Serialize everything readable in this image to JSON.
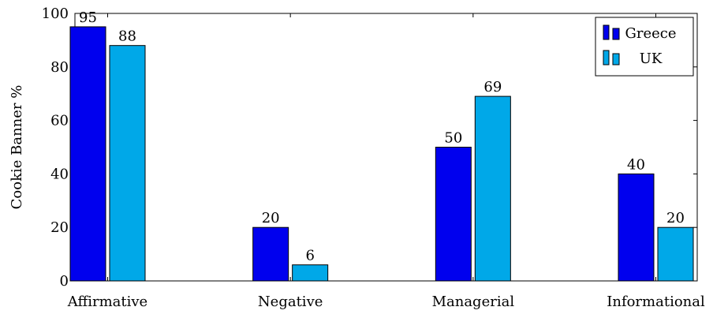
{
  "chart_data": {
    "type": "bar",
    "title": "",
    "xlabel": "",
    "ylabel": "Cookie Banner %",
    "ylim": [
      0,
      100
    ],
    "yticks": [
      0,
      20,
      40,
      60,
      80,
      100
    ],
    "categories": [
      "Affirmative",
      "Negative",
      "Managerial",
      "Informational"
    ],
    "series": [
      {
        "name": "Greece",
        "values": [
          95,
          20,
          50,
          40
        ],
        "color": "#0000ee"
      },
      {
        "name": "UK",
        "values": [
          88,
          6,
          69,
          20
        ],
        "color": "#00a8e8"
      }
    ],
    "legend_position": "top-right",
    "grid": false
  }
}
